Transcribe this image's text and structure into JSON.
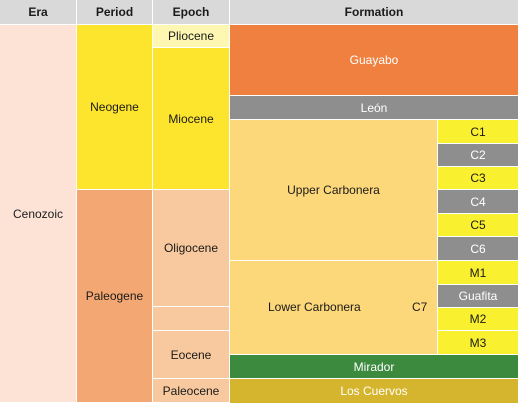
{
  "headers": {
    "era": "Era",
    "period": "Period",
    "epoch": "Epoch",
    "formation": "Formation"
  },
  "era": {
    "cenozoic": "Cenozoic"
  },
  "periods": {
    "neogene": "Neogene",
    "paleogene": "Paleogene"
  },
  "epochs": {
    "pliocene": "Pliocene",
    "miocene": "Miocene",
    "oligocene": "Oligocene",
    "eocene": "Eocene",
    "paleocene": "Paleocene"
  },
  "formations": {
    "guayabo": "Guayabo",
    "leon": "León",
    "upper_carbonera": "Upper Carbonera",
    "lower_carbonera": "Lower Carbonera",
    "c7": "C7",
    "mirador": "Mirador",
    "los_cuervos": "Los Cuervos"
  },
  "members": {
    "c1": "C1",
    "c2": "C2",
    "c3": "C3",
    "c4": "C4",
    "c5": "C5",
    "c6": "C6",
    "m1": "M1",
    "guafita": "Guafita",
    "m2": "M2",
    "m3": "M3"
  },
  "colors": {
    "header": "#d9d9d9",
    "cenozoic": "#fde3d6",
    "neogene": "#fde52e",
    "paleogene": "#f3a873",
    "pliocene": "#fef7b2",
    "miocene": "#fde52e",
    "paleogene_epochs": "#f8c99e",
    "guayabo": "#f08040",
    "carbonera": "#fdd87a",
    "grey": "#8e8e8e",
    "yellow": "#f9f02f",
    "mirador": "#3c8a3e",
    "los_cuervos": "#d6b52e"
  }
}
